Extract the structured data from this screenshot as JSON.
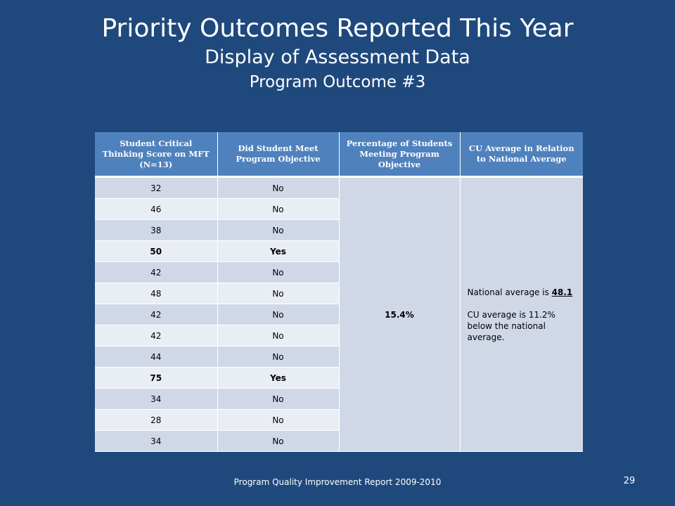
{
  "slide": {
    "title": "Priority Outcomes Reported This Year",
    "subtitle": "Display of Assessment  Data",
    "subtitle2": "Program Outcome #3",
    "footer": "Program Quality Improvement Report 2009-2010",
    "page_number": "29"
  },
  "table": {
    "headers": [
      "Student Critical Thinking Score on MFT (N=13)",
      "Did Student Meet Program Objective",
      "Percentage of Students Meeting Program Objective",
      "CU Average in Relation to National Average"
    ],
    "rows": [
      {
        "score": "32",
        "met": "No"
      },
      {
        "score": "46",
        "met": "No"
      },
      {
        "score": "38",
        "met": "No"
      },
      {
        "score": "50",
        "met": "Yes"
      },
      {
        "score": "42",
        "met": "No"
      },
      {
        "score": "48",
        "met": "No"
      },
      {
        "score": "42",
        "met": "No"
      },
      {
        "score": "42",
        "met": "No"
      },
      {
        "score": "44",
        "met": "No"
      },
      {
        "score": "75",
        "met": "Yes"
      },
      {
        "score": "34",
        "met": "No"
      },
      {
        "score": "28",
        "met": "No"
      },
      {
        "score": "34",
        "met": "No"
      }
    ],
    "percentage": "15.4%",
    "note_prefix": "National average is ",
    "note_national_avg": "48.1",
    "note_cu": "CU average is 11.2% below the national average."
  }
}
